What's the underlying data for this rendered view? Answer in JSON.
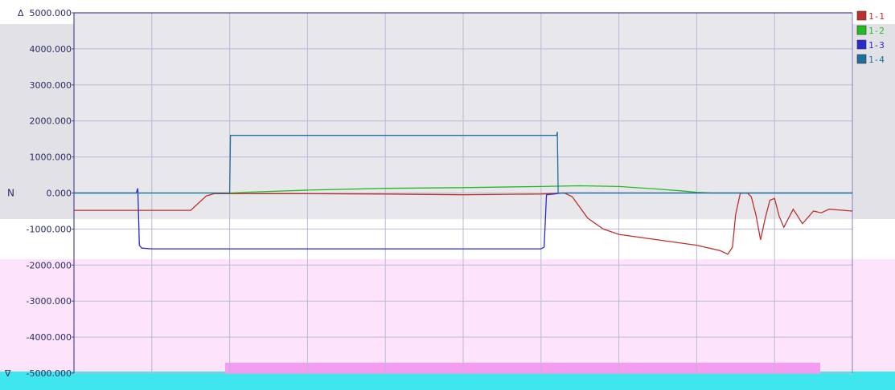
{
  "chart_data": {
    "type": "line",
    "ylabel": "N",
    "ylim": [
      -5000,
      5000
    ],
    "yticks": [
      5000,
      4000,
      3000,
      2000,
      1000,
      0,
      -1000,
      -2000,
      -3000,
      -4000,
      -5000
    ],
    "ytick_labels": [
      "5000.000",
      "4000.000",
      "3000.000",
      "2000.000",
      "1000.000",
      "0.000",
      "-1000.000",
      "-2000.000",
      "-3000.000",
      "-4000.000",
      "-5000.000"
    ],
    "top_marker": "Δ",
    "bottom_marker": "∇",
    "xlim": [
      0,
      100
    ],
    "grid": true,
    "legend_position": "right",
    "series": [
      {
        "name": "1-1",
        "color": "#c0302a",
        "points": [
          [
            0,
            -480
          ],
          [
            15,
            -480
          ],
          [
            15.5,
            -380
          ],
          [
            17,
            -80
          ],
          [
            18,
            -20
          ],
          [
            30,
            -20
          ],
          [
            40,
            -30
          ],
          [
            50,
            -50
          ],
          [
            60,
            -30
          ],
          [
            62,
            -10
          ],
          [
            63,
            0
          ],
          [
            64,
            -100
          ],
          [
            66,
            -700
          ],
          [
            68,
            -1000
          ],
          [
            70,
            -1150
          ],
          [
            75,
            -1300
          ],
          [
            80,
            -1450
          ],
          [
            83,
            -1600
          ],
          [
            84,
            -1700
          ],
          [
            84.6,
            -1500
          ],
          [
            85,
            -600
          ],
          [
            85.6,
            -10
          ],
          [
            86.5,
            0
          ],
          [
            87,
            -100
          ],
          [
            87.6,
            -600
          ],
          [
            88.2,
            -1300
          ],
          [
            88.8,
            -700
          ],
          [
            89.4,
            -200
          ],
          [
            90,
            -150
          ],
          [
            90.6,
            -650
          ],
          [
            91.2,
            -950
          ],
          [
            91.8,
            -700
          ],
          [
            92.4,
            -450
          ],
          [
            93,
            -650
          ],
          [
            93.6,
            -850
          ],
          [
            94.2,
            -700
          ],
          [
            95,
            -500
          ],
          [
            96,
            -550
          ],
          [
            97,
            -450
          ],
          [
            100,
            -500
          ]
        ]
      },
      {
        "name": "1-2",
        "color": "#22bb22",
        "points": [
          [
            0,
            0
          ],
          [
            20,
            0
          ],
          [
            22,
            20
          ],
          [
            30,
            80
          ],
          [
            40,
            130
          ],
          [
            50,
            150
          ],
          [
            60,
            180
          ],
          [
            65,
            200
          ],
          [
            70,
            180
          ],
          [
            75,
            110
          ],
          [
            78,
            60
          ],
          [
            80,
            20
          ],
          [
            82,
            0
          ],
          [
            100,
            0
          ]
        ]
      },
      {
        "name": "1-3",
        "color": "#2a2ad0",
        "points": [
          [
            0,
            0
          ],
          [
            8,
            0
          ],
          [
            8.2,
            130
          ],
          [
            8.4,
            -1450
          ],
          [
            8.7,
            -1530
          ],
          [
            10,
            -1550
          ],
          [
            60,
            -1550
          ],
          [
            60.4,
            -1500
          ],
          [
            60.7,
            -50
          ],
          [
            62,
            -20
          ],
          [
            62.5,
            0
          ],
          [
            100,
            0
          ]
        ]
      },
      {
        "name": "1-4",
        "color": "#1e6ea0",
        "points": [
          [
            0,
            0
          ],
          [
            20,
            0
          ],
          [
            20.1,
            1600
          ],
          [
            62,
            1600
          ],
          [
            62.1,
            1700
          ],
          [
            62.2,
            0
          ],
          [
            100,
            0
          ]
        ]
      }
    ]
  }
}
